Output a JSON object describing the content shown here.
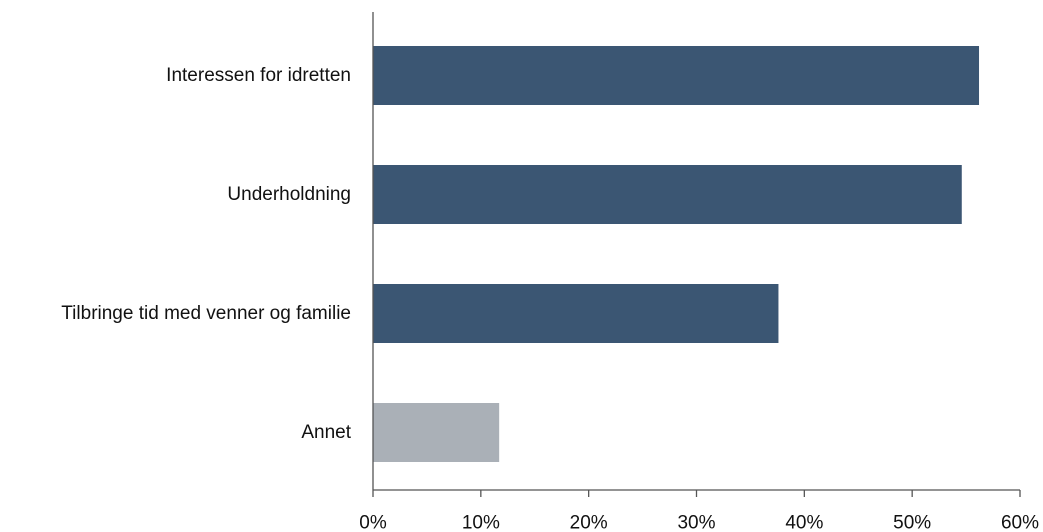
{
  "chart_data": {
    "type": "bar",
    "orientation": "horizontal",
    "categories": [
      "Interessen for idretten",
      "Underholdning",
      "Tilbringe tid med venner og familie",
      "Annet"
    ],
    "values": [
      56.2,
      54.6,
      37.6,
      11.7
    ],
    "bar_colors": [
      "#3b5673",
      "#3b5673",
      "#3b5673",
      "#aab0b7"
    ],
    "xlim": [
      0,
      60
    ],
    "x_ticks": [
      "0%",
      "10%",
      "20%",
      "30%",
      "40%",
      "50%",
      "60%"
    ],
    "title": "",
    "xlabel": "",
    "ylabel": "",
    "grid": false,
    "legend": "none"
  }
}
